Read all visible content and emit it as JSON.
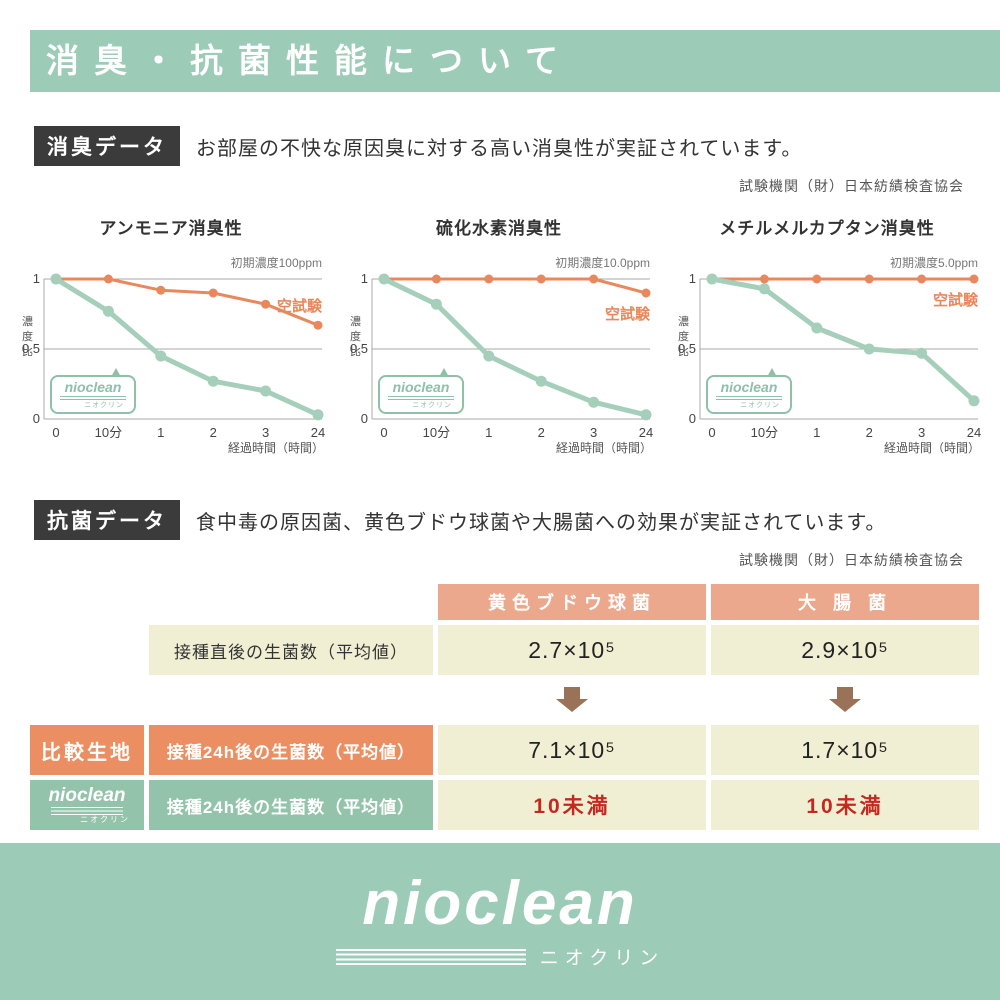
{
  "header": {
    "title": "消臭・抗菌性能について"
  },
  "colors": {
    "brand_green": "#9CCBB7",
    "accent_orange": "#E8885C",
    "table_header_salmon": "#EBA88C",
    "cell_cream": "#F1EFD3",
    "alert_red": "#C4281E",
    "arrow_brown": "#9A7258",
    "label_black": "#3B3B3B",
    "bubble_green": "#8FC0A9"
  },
  "bubble": {
    "name": "nioclean",
    "sub": "ニオクリン"
  },
  "deodorant_section": {
    "label": "消臭データ",
    "description": "お部屋の不快な原因臭に対する高い消臭性が実証されています。",
    "agency": "試験機関（財）日本紡績検査協会"
  },
  "chart_data": [
    {
      "id": "ammonia",
      "type": "line",
      "title": "アンモニア消臭性",
      "annotation": "初期濃度100ppm",
      "categories": [
        "0",
        "10分",
        "1",
        "2",
        "3",
        "24"
      ],
      "xlabel": "経過時間（時間）",
      "ylabel": "濃度比",
      "yticks": [
        0,
        0.5,
        1
      ],
      "ylim": [
        0,
        1
      ],
      "grid": true,
      "legend_position": "right",
      "series": [
        {
          "name": "空試験",
          "color": "#E8885C",
          "values": [
            1,
            1,
            0.92,
            0.9,
            0.82,
            0.67
          ],
          "label": true,
          "label_position": "above"
        },
        {
          "name": "nioclean",
          "color": "#A5CFBB",
          "values": [
            1,
            0.77,
            0.45,
            0.27,
            0.2,
            0.03
          ]
        }
      ]
    },
    {
      "id": "hydrogen-sulfide",
      "type": "line",
      "title": "硫化水素消臭性",
      "annotation": "初期濃度10.0ppm",
      "categories": [
        "0",
        "10分",
        "1",
        "2",
        "3",
        "24"
      ],
      "xlabel": "経過時間（時間）",
      "ylabel": "濃度比",
      "yticks": [
        0,
        0.5,
        1
      ],
      "ylim": [
        0,
        1
      ],
      "grid": true,
      "legend_position": "right",
      "series": [
        {
          "name": "空試験",
          "color": "#E8885C",
          "values": [
            1,
            1,
            1,
            1,
            1,
            0.9
          ],
          "label": true,
          "label_position": "below"
        },
        {
          "name": "nioclean",
          "color": "#A5CFBB",
          "values": [
            1,
            0.82,
            0.45,
            0.27,
            0.12,
            0.03
          ]
        }
      ]
    },
    {
      "id": "methyl-mercaptan",
      "type": "line",
      "title": "メチルメルカプタン消臭性",
      "annotation": "初期濃度5.0ppm",
      "categories": [
        "0",
        "10分",
        "1",
        "2",
        "3",
        "24"
      ],
      "xlabel": "経過時間（時間）",
      "ylabel": "濃度比",
      "yticks": [
        0,
        0.5,
        1
      ],
      "ylim": [
        0,
        1
      ],
      "grid": true,
      "legend_position": "right",
      "series": [
        {
          "name": "空試験",
          "color": "#E8885C",
          "values": [
            1,
            1,
            1,
            1,
            1,
            1
          ],
          "label": true,
          "label_position": "below"
        },
        {
          "name": "nioclean",
          "color": "#A5CFBB",
          "values": [
            1,
            0.93,
            0.65,
            0.5,
            0.47,
            0.13
          ]
        }
      ]
    }
  ],
  "antibacterial_section": {
    "label": "抗菌データ",
    "description": "食中毒の原因菌、黄色ブドウ球菌や大腸菌への効果が実証されています。",
    "agency": "試験機関（財）日本紡績検査協会",
    "table": {
      "col_headers": [
        "黄色ブドウ球菌",
        "大 腸 菌"
      ],
      "rows": [
        {
          "desc": "接種直後の生菌数（平均値）",
          "values": [
            "2.7×10⁵",
            "2.9×10⁵"
          ]
        },
        {
          "row_label": "比較生地",
          "desc": "接種24h後の生菌数（平均値）",
          "values": [
            "7.1×10⁵",
            "1.7×10⁵"
          ]
        },
        {
          "row_label": "nioclean",
          "row_label_sub": "ニオクリン",
          "desc": "接種24h後の生菌数（平均値）",
          "values": [
            "10未満",
            "10未満"
          ]
        }
      ]
    }
  },
  "footer": {
    "logo": "nioclean",
    "logo_sub": "ニオクリン"
  }
}
